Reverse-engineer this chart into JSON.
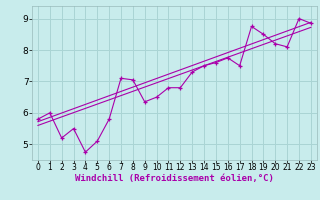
{
  "xlabel": "Windchill (Refroidissement éolien,°C)",
  "bg_color": "#c8ecec",
  "grid_color": "#aad4d4",
  "line_color": "#aa00aa",
  "xlim": [
    -0.5,
    23.5
  ],
  "ylim": [
    4.5,
    9.4
  ],
  "xticks": [
    0,
    1,
    2,
    3,
    4,
    5,
    6,
    7,
    8,
    9,
    10,
    11,
    12,
    13,
    14,
    15,
    16,
    17,
    18,
    19,
    20,
    21,
    22,
    23
  ],
  "yticks": [
    5,
    6,
    7,
    8,
    9
  ],
  "series1_x": [
    0,
    1,
    2,
    3,
    4,
    5,
    6,
    7,
    8,
    9,
    10,
    11,
    12,
    13,
    14,
    15,
    16,
    17,
    18,
    19,
    20,
    21,
    22,
    23
  ],
  "series1_y": [
    5.8,
    6.0,
    5.2,
    5.5,
    4.75,
    5.1,
    5.8,
    7.1,
    7.05,
    6.35,
    6.5,
    6.8,
    6.8,
    7.3,
    7.5,
    7.6,
    7.75,
    7.5,
    8.75,
    8.5,
    8.2,
    8.1,
    9.0,
    8.85
  ],
  "series2_x": [
    0,
    23
  ],
  "series2_y": [
    5.72,
    8.88
  ],
  "series3_x": [
    0,
    23
  ],
  "series3_y": [
    5.6,
    8.72
  ],
  "xlabel_fontsize": 6.5,
  "xtick_fontsize": 5.5,
  "ytick_fontsize": 6.5
}
